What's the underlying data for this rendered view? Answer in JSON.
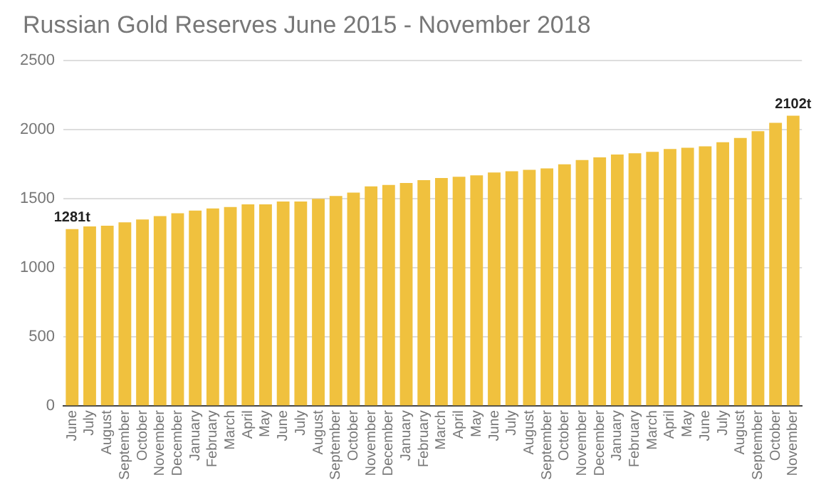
{
  "chart_data": {
    "type": "bar",
    "title": "Russian Gold Reserves June 2015 - November 2018",
    "categories": [
      "June",
      "July",
      "August",
      "September",
      "October",
      "November",
      "December",
      "January",
      "February",
      "March",
      "April",
      "May",
      "June",
      "July",
      "August",
      "September",
      "October",
      "November",
      "December",
      "January",
      "February",
      "March",
      "April",
      "May",
      "June",
      "July",
      "August",
      "September",
      "October",
      "November",
      "December",
      "January",
      "February",
      "March",
      "April",
      "May",
      "June",
      "July",
      "August",
      "September",
      "October",
      "November"
    ],
    "values": [
      1281,
      1300,
      1305,
      1330,
      1350,
      1375,
      1395,
      1415,
      1430,
      1440,
      1460,
      1460,
      1480,
      1480,
      1500,
      1520,
      1545,
      1590,
      1600,
      1615,
      1635,
      1650,
      1660,
      1670,
      1690,
      1700,
      1710,
      1720,
      1750,
      1780,
      1800,
      1820,
      1830,
      1840,
      1860,
      1870,
      1880,
      1910,
      1940,
      1990,
      2050,
      2102
    ],
    "value_labels": [
      "1281t",
      null,
      null,
      null,
      null,
      null,
      null,
      null,
      null,
      null,
      null,
      null,
      null,
      null,
      null,
      null,
      null,
      null,
      null,
      null,
      null,
      null,
      null,
      null,
      null,
      null,
      null,
      null,
      null,
      null,
      null,
      null,
      null,
      null,
      null,
      null,
      null,
      null,
      null,
      null,
      null,
      "2102t"
    ],
    "color": "#f0c13e",
    "ylim": [
      0,
      2500
    ],
    "yticks": [
      0,
      500,
      1000,
      1500,
      2000,
      2500
    ],
    "grid": "y",
    "legend": false
  }
}
